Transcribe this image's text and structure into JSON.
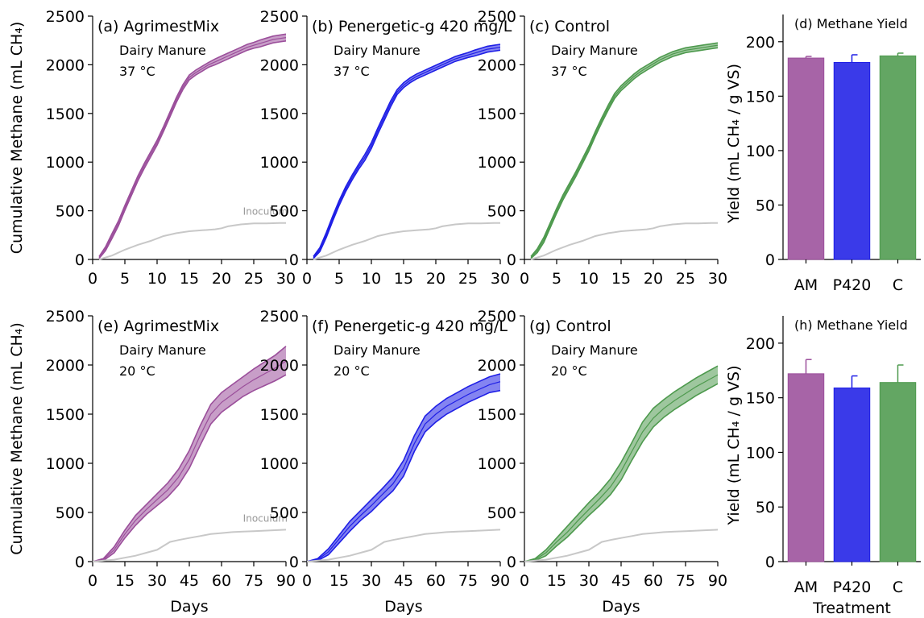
{
  "colors": {
    "am": "#9b4f9b",
    "p420": "#1f1fe6",
    "c": "#4e9a4e",
    "inoculum": "#c8c8c8"
  },
  "labels": {
    "ylabel_cum": "Cumulative Methane (mL CH₄)",
    "ylabel_yield": "Yield (mL CH₄ / g VS)",
    "xlabel_days": "Days",
    "xlabel_treatment": "Treatment",
    "inoculum": "Inoculum"
  },
  "chart_data": [
    {
      "id": "a",
      "type": "line",
      "title": "(a) AgrimestMix",
      "subtitle": "Dairy Manure",
      "temperature": "37 °C",
      "xlabel": "",
      "ylabel": "Cumulative Methane (mL CH₄)",
      "xlim": [
        0,
        30
      ],
      "ylim": [
        0,
        2500
      ],
      "xticks": [
        0,
        5,
        10,
        15,
        20,
        25,
        30
      ],
      "yticks": [
        0,
        500,
        1000,
        1500,
        2000,
        2500
      ],
      "series": [
        {
          "x": [
            1,
            2,
            3,
            4,
            5,
            6,
            7,
            8,
            9,
            10,
            11,
            12,
            13,
            14,
            15,
            16,
            17,
            18,
            19,
            20,
            21,
            22,
            23,
            24,
            25,
            26,
            27,
            28,
            29,
            30
          ],
          "mean": [
            20,
            110,
            240,
            370,
            530,
            680,
            830,
            960,
            1080,
            1200,
            1340,
            1490,
            1640,
            1770,
            1870,
            1920,
            1960,
            2000,
            2030,
            2060,
            2090,
            2120,
            2150,
            2180,
            2200,
            2220,
            2240,
            2260,
            2270,
            2280
          ],
          "upper": [
            30,
            130,
            265,
            395,
            555,
            705,
            855,
            985,
            1105,
            1225,
            1365,
            1515,
            1665,
            1795,
            1895,
            1945,
            1985,
            2025,
            2060,
            2090,
            2120,
            2150,
            2180,
            2210,
            2230,
            2255,
            2275,
            2295,
            2305,
            2315
          ],
          "lower": [
            10,
            90,
            215,
            345,
            505,
            655,
            805,
            935,
            1055,
            1175,
            1315,
            1465,
            1615,
            1745,
            1845,
            1895,
            1935,
            1975,
            2000,
            2030,
            2060,
            2090,
            2120,
            2150,
            2170,
            2185,
            2205,
            2225,
            2235,
            2245
          ]
        },
        {
          "name": "Inoculum",
          "x": [
            1,
            3,
            5,
            7,
            9,
            11,
            13,
            15,
            17,
            19,
            20,
            21,
            23,
            25,
            27,
            29,
            30
          ],
          "mean": [
            0,
            40,
            100,
            150,
            190,
            240,
            270,
            290,
            300,
            310,
            320,
            340,
            360,
            370,
            370,
            375,
            375
          ]
        }
      ]
    },
    {
      "id": "b",
      "type": "line",
      "title": "(b) Penergetic-g 420 mg/L",
      "subtitle": "Dairy Manure",
      "temperature": "37 °C",
      "xlabel": "",
      "ylabel": "",
      "xlim": [
        0,
        30
      ],
      "ylim": [
        0,
        2500
      ],
      "xticks": [
        0,
        5,
        10,
        15,
        20,
        25,
        30
      ],
      "yticks": [
        0,
        500,
        1000,
        1500,
        2000,
        2500
      ],
      "series": [
        {
          "x": [
            1,
            2,
            3,
            4,
            5,
            6,
            7,
            8,
            9,
            10,
            11,
            12,
            13,
            14,
            15,
            16,
            17,
            18,
            19,
            20,
            21,
            22,
            23,
            24,
            25,
            26,
            27,
            28,
            29,
            30
          ],
          "mean": [
            20,
            100,
            250,
            420,
            580,
            720,
            840,
            950,
            1050,
            1170,
            1320,
            1460,
            1600,
            1720,
            1790,
            1840,
            1880,
            1910,
            1940,
            1970,
            2000,
            2030,
            2060,
            2080,
            2100,
            2120,
            2140,
            2160,
            2170,
            2180
          ],
          "upper": [
            30,
            120,
            275,
            445,
            605,
            745,
            865,
            975,
            1080,
            1200,
            1350,
            1490,
            1630,
            1745,
            1815,
            1865,
            1905,
            1935,
            1965,
            1995,
            2025,
            2055,
            2085,
            2105,
            2125,
            2150,
            2170,
            2190,
            2200,
            2210
          ],
          "lower": [
            10,
            80,
            225,
            395,
            555,
            695,
            815,
            925,
            1020,
            1140,
            1290,
            1430,
            1570,
            1695,
            1765,
            1815,
            1855,
            1885,
            1915,
            1945,
            1975,
            2005,
            2035,
            2055,
            2075,
            2090,
            2110,
            2130,
            2140,
            2150
          ]
        },
        {
          "x": [
            1,
            3,
            5,
            7,
            9,
            11,
            13,
            15,
            17,
            19,
            20,
            21,
            23,
            25,
            27,
            29,
            30
          ],
          "mean": [
            0,
            40,
            100,
            150,
            190,
            240,
            270,
            290,
            300,
            310,
            320,
            340,
            360,
            370,
            370,
            375,
            375
          ]
        }
      ]
    },
    {
      "id": "c",
      "type": "line",
      "title": "(c) Control",
      "subtitle": "Dairy Manure",
      "temperature": "37 °C",
      "xlabel": "",
      "ylabel": "",
      "xlim": [
        0,
        30
      ],
      "ylim": [
        0,
        2500
      ],
      "xticks": [
        0,
        5,
        10,
        15,
        20,
        25,
        30
      ],
      "yticks": [
        0,
        500,
        1000,
        1500,
        2000,
        2500
      ],
      "series": [
        {
          "x": [
            1,
            2,
            3,
            4,
            5,
            6,
            7,
            8,
            9,
            10,
            11,
            12,
            13,
            14,
            15,
            16,
            17,
            18,
            19,
            20,
            21,
            22,
            23,
            24,
            25,
            26,
            27,
            28,
            29,
            30
          ],
          "mean": [
            20,
            90,
            200,
            350,
            500,
            640,
            760,
            880,
            1010,
            1140,
            1290,
            1430,
            1560,
            1680,
            1760,
            1820,
            1880,
            1930,
            1970,
            2010,
            2050,
            2080,
            2110,
            2130,
            2150,
            2160,
            2170,
            2180,
            2190,
            2200
          ],
          "upper": [
            30,
            110,
            225,
            375,
            525,
            665,
            785,
            905,
            1035,
            1165,
            1315,
            1455,
            1585,
            1705,
            1785,
            1845,
            1905,
            1955,
            1995,
            2035,
            2075,
            2105,
            2135,
            2155,
            2175,
            2185,
            2195,
            2205,
            2215,
            2225
          ],
          "lower": [
            10,
            70,
            175,
            325,
            475,
            615,
            735,
            855,
            985,
            1115,
            1265,
            1405,
            1535,
            1655,
            1735,
            1795,
            1855,
            1905,
            1945,
            1985,
            2025,
            2055,
            2085,
            2105,
            2125,
            2135,
            2145,
            2155,
            2165,
            2175
          ]
        },
        {
          "x": [
            1,
            3,
            5,
            7,
            9,
            11,
            13,
            15,
            17,
            19,
            20,
            21,
            23,
            25,
            27,
            29,
            30
          ],
          "mean": [
            0,
            40,
            100,
            150,
            190,
            240,
            270,
            290,
            300,
            310,
            320,
            340,
            360,
            370,
            370,
            375,
            375
          ]
        }
      ]
    },
    {
      "id": "d",
      "type": "bar",
      "title": "(d) Methane Yield",
      "xlabel": "",
      "ylabel": "Yield (mL CH₄ / g VS)",
      "ylim": [
        0,
        225
      ],
      "yticks": [
        0,
        50,
        100,
        150,
        200
      ],
      "categories": [
        "AM",
        "P420",
        "C"
      ],
      "values": [
        185,
        181,
        187
      ],
      "errors": [
        1.5,
        7,
        2.5
      ]
    },
    {
      "id": "e",
      "type": "line",
      "title": "(e) AgrimestMix",
      "subtitle": "Dairy Manure",
      "temperature": "20 °C",
      "xlabel": "Days",
      "ylabel": "Cumulative Methane (mL CH₄)",
      "xlim": [
        0,
        90
      ],
      "ylim": [
        0,
        2500
      ],
      "xticks": [
        0,
        15,
        30,
        45,
        60,
        75,
        90
      ],
      "yticks": [
        0,
        500,
        1000,
        1500,
        2000,
        2500
      ],
      "series": [
        {
          "x": [
            0,
            5,
            10,
            15,
            20,
            25,
            30,
            35,
            40,
            45,
            50,
            55,
            60,
            65,
            70,
            75,
            80,
            85,
            90
          ],
          "mean": [
            0,
            20,
            120,
            280,
            420,
            530,
            630,
            730,
            860,
            1040,
            1280,
            1500,
            1620,
            1700,
            1780,
            1850,
            1910,
            1970,
            2040
          ],
          "upper": [
            0,
            30,
            150,
            320,
            470,
            580,
            690,
            800,
            940,
            1130,
            1380,
            1600,
            1720,
            1800,
            1880,
            1960,
            2030,
            2100,
            2190
          ],
          "lower": [
            0,
            10,
            90,
            240,
            370,
            480,
            570,
            660,
            780,
            950,
            1180,
            1400,
            1520,
            1600,
            1680,
            1740,
            1790,
            1840,
            1900
          ]
        },
        {
          "name": "Inoculum",
          "x": [
            0,
            10,
            20,
            25,
            30,
            33,
            36,
            40,
            45,
            50,
            55,
            60,
            65,
            70,
            75,
            80,
            85,
            90
          ],
          "mean": [
            0,
            20,
            60,
            90,
            120,
            160,
            200,
            220,
            240,
            260,
            280,
            290,
            300,
            305,
            310,
            315,
            320,
            325
          ]
        }
      ]
    },
    {
      "id": "f",
      "type": "line",
      "title": "(f) Penergetic-g 420 mg/L",
      "subtitle": "Dairy Manure",
      "temperature": "20 °C",
      "xlabel": "Days",
      "ylabel": "",
      "xlim": [
        0,
        90
      ],
      "ylim": [
        0,
        2500
      ],
      "xticks": [
        0,
        15,
        30,
        45,
        60,
        75,
        90
      ],
      "yticks": [
        0,
        500,
        1000,
        1500,
        2000,
        2500
      ],
      "series": [
        {
          "x": [
            0,
            5,
            10,
            15,
            20,
            25,
            30,
            35,
            40,
            45,
            50,
            55,
            60,
            65,
            70,
            75,
            80,
            85,
            90
          ],
          "mean": [
            0,
            20,
            100,
            230,
            360,
            470,
            570,
            680,
            790,
            950,
            1200,
            1400,
            1500,
            1580,
            1640,
            1700,
            1750,
            1800,
            1830
          ],
          "upper": [
            0,
            30,
            130,
            270,
            410,
            520,
            630,
            740,
            860,
            1030,
            1280,
            1480,
            1580,
            1660,
            1720,
            1780,
            1830,
            1880,
            1910
          ],
          "lower": [
            0,
            10,
            70,
            190,
            310,
            420,
            510,
            620,
            720,
            870,
            1120,
            1320,
            1420,
            1500,
            1560,
            1620,
            1670,
            1720,
            1740
          ]
        },
        {
          "x": [
            0,
            10,
            20,
            25,
            30,
            33,
            36,
            40,
            45,
            50,
            55,
            60,
            65,
            70,
            75,
            80,
            85,
            90
          ],
          "mean": [
            0,
            20,
            60,
            90,
            120,
            160,
            200,
            220,
            240,
            260,
            280,
            290,
            300,
            305,
            310,
            315,
            320,
            325
          ]
        }
      ]
    },
    {
      "id": "g",
      "type": "line",
      "title": "(g) Control",
      "subtitle": "Dairy Manure",
      "temperature": "20 °C",
      "xlabel": "Days",
      "ylabel": "",
      "xlim": [
        0,
        90
      ],
      "ylim": [
        0,
        2500
      ],
      "xticks": [
        0,
        15,
        30,
        45,
        60,
        75,
        90
      ],
      "yticks": [
        0,
        500,
        1000,
        1500,
        2000,
        2500
      ],
      "series": [
        {
          "x": [
            0,
            5,
            10,
            15,
            20,
            25,
            30,
            35,
            40,
            45,
            50,
            55,
            60,
            65,
            70,
            75,
            80,
            85,
            90
          ],
          "mean": [
            0,
            20,
            90,
            200,
            300,
            420,
            530,
            640,
            760,
            920,
            1120,
            1320,
            1460,
            1560,
            1640,
            1710,
            1780,
            1840,
            1900
          ],
          "upper": [
            0,
            30,
            120,
            240,
            360,
            480,
            600,
            710,
            840,
            1010,
            1210,
            1420,
            1560,
            1650,
            1730,
            1800,
            1870,
            1930,
            1990
          ],
          "lower": [
            0,
            10,
            60,
            160,
            250,
            360,
            470,
            570,
            680,
            830,
            1030,
            1220,
            1370,
            1470,
            1550,
            1620,
            1690,
            1750,
            1810
          ]
        },
        {
          "x": [
            0,
            10,
            20,
            25,
            30,
            33,
            36,
            40,
            45,
            50,
            55,
            60,
            65,
            70,
            75,
            80,
            85,
            90
          ],
          "mean": [
            0,
            20,
            60,
            90,
            120,
            160,
            200,
            220,
            240,
            260,
            280,
            290,
            300,
            305,
            310,
            315,
            320,
            325
          ]
        }
      ]
    },
    {
      "id": "h",
      "type": "bar",
      "title": "(h) Methane Yield",
      "xlabel": "Treatment",
      "ylabel": "Yield (mL CH₄ / g VS)",
      "ylim": [
        0,
        225
      ],
      "yticks": [
        0,
        50,
        100,
        150,
        200
      ],
      "categories": [
        "AM",
        "P420",
        "C"
      ],
      "values": [
        172,
        159,
        164
      ],
      "errors": [
        13,
        11,
        16
      ]
    }
  ]
}
